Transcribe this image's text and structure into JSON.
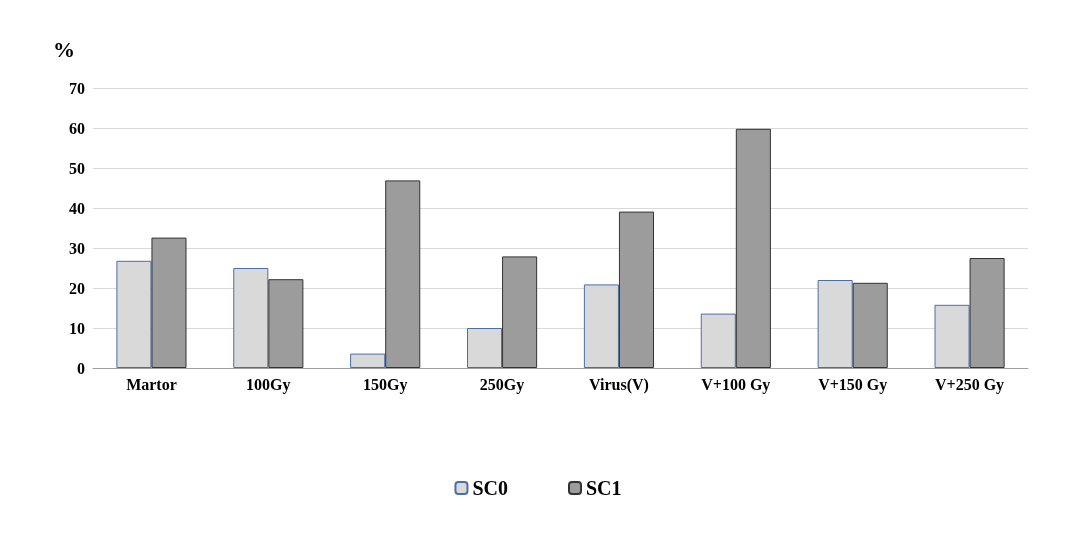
{
  "chart_data": {
    "type": "bar",
    "ylabel": "%",
    "categories": [
      "Martor",
      "100Gy",
      "150Gy",
      "250Gy",
      "Virus(V)",
      "V+100 Gy",
      "V+150 Gy",
      "V+250 Gy"
    ],
    "series": [
      {
        "name": "SC0",
        "color": "#d9d9d9",
        "values": [
          26.8,
          25,
          3.6,
          10,
          20.9,
          13.6,
          22,
          15.8
        ]
      },
      {
        "name": "SC1",
        "color": "#9c9c9c",
        "values": [
          32.6,
          22.2,
          46.9,
          27.9,
          39.1,
          59.8,
          21.3,
          27.5
        ]
      }
    ],
    "ylim": [
      0,
      70
    ],
    "yticks": [
      0,
      10,
      20,
      30,
      40,
      50,
      60,
      70
    ],
    "grid": "y",
    "legend": "bottom"
  }
}
